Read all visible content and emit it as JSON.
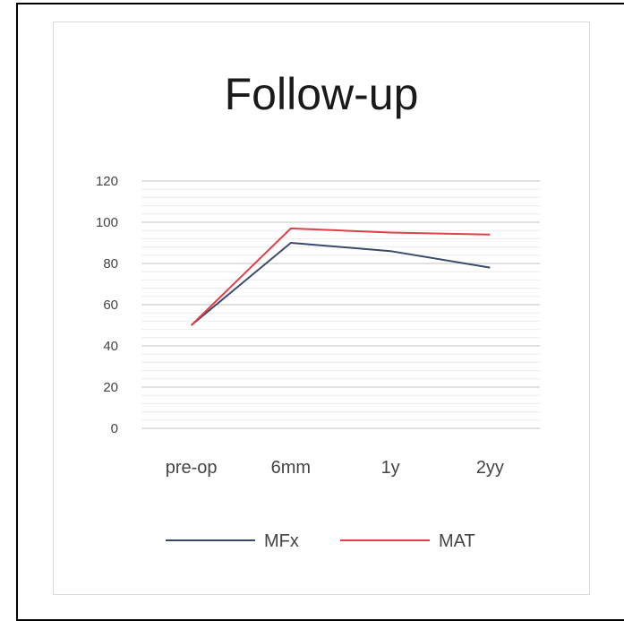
{
  "chart_data": {
    "type": "line",
    "title": "Follow-up",
    "categories": [
      "pre-op",
      "6mm",
      "1y",
      "2yy"
    ],
    "series": [
      {
        "name": "MFx",
        "values": [
          50,
          90,
          86,
          78
        ],
        "color": "#3a4a6b"
      },
      {
        "name": "MAT",
        "values": [
          50,
          97,
          95,
          94
        ],
        "color": "#e0404a"
      }
    ],
    "ylim": [
      0,
      120
    ],
    "yticks": [
      0,
      20,
      40,
      60,
      80,
      100,
      120
    ],
    "grid": true,
    "legend": "bottom",
    "xlabel": "",
    "ylabel": ""
  }
}
